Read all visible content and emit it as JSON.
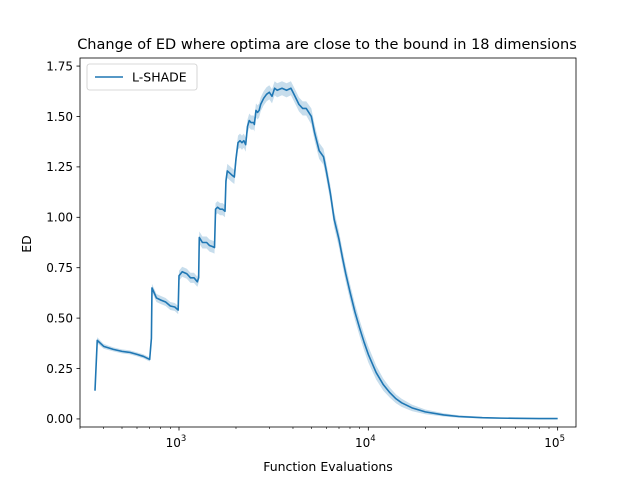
{
  "chart_data": {
    "type": "line",
    "title": "Change of ED where optima are close to the bound in 18 dimensions",
    "xlabel": "Function Evaluations",
    "ylabel": "ED",
    "xscale": "log",
    "xlim": [
      300,
      125000
    ],
    "ylim": [
      -0.04,
      1.79
    ],
    "xticks": [
      {
        "value": 1000,
        "base": "10",
        "exp": "3"
      },
      {
        "value": 10000,
        "base": "10",
        "exp": "4"
      },
      {
        "value": 100000,
        "base": "10",
        "exp": "5"
      }
    ],
    "yticks": [
      {
        "value": 0.0,
        "label": "0.00"
      },
      {
        "value": 0.25,
        "label": "0.25"
      },
      {
        "value": 0.5,
        "label": "0.50"
      },
      {
        "value": 0.75,
        "label": "0.75"
      },
      {
        "value": 1.0,
        "label": "1.00"
      },
      {
        "value": 1.25,
        "label": "1.25"
      },
      {
        "value": 1.5,
        "label": "1.50"
      },
      {
        "value": 1.75,
        "label": "1.75"
      }
    ],
    "legend": {
      "position": "top-left",
      "entries": [
        "L-SHADE"
      ]
    },
    "colors": {
      "line": "#1f77b4",
      "band": "#1f77b4"
    },
    "grid": false,
    "series": [
      {
        "name": "L-SHADE",
        "x": [
          360,
          370,
          400,
          450,
          500,
          550,
          600,
          650,
          700,
          715,
          720,
          760,
          800,
          850,
          900,
          950,
          990,
          1000,
          1040,
          1100,
          1150,
          1200,
          1250,
          1270,
          1280,
          1330,
          1400,
          1450,
          1500,
          1540,
          1560,
          1600,
          1650,
          1700,
          1750,
          1770,
          1800,
          1850,
          1900,
          1960,
          2000,
          2050,
          2100,
          2150,
          2200,
          2250,
          2300,
          2350,
          2400,
          2480,
          2500,
          2550,
          2600,
          2650,
          2700,
          2800,
          2900,
          3000,
          3100,
          3200,
          3300,
          3500,
          3700,
          3900,
          4000,
          4200,
          4300,
          4500,
          4700,
          5000,
          5200,
          5500,
          5800,
          6000,
          6300,
          6600,
          7000,
          7300,
          7600,
          8000,
          8500,
          9000,
          9500,
          10000,
          11000,
          12000,
          13000,
          14000,
          15000,
          17000,
          20000,
          25000,
          30000,
          40000,
          50000,
          60000,
          80000,
          100000
        ],
        "y": [
          0.14,
          0.39,
          0.36,
          0.345,
          0.335,
          0.33,
          0.32,
          0.31,
          0.295,
          0.4,
          0.65,
          0.6,
          0.59,
          0.58,
          0.56,
          0.555,
          0.54,
          0.71,
          0.73,
          0.72,
          0.7,
          0.7,
          0.68,
          0.7,
          0.9,
          0.875,
          0.875,
          0.86,
          0.855,
          0.85,
          1.04,
          1.05,
          1.04,
          1.04,
          1.03,
          1.18,
          1.23,
          1.22,
          1.21,
          1.2,
          1.29,
          1.37,
          1.38,
          1.37,
          1.38,
          1.36,
          1.45,
          1.48,
          1.47,
          1.47,
          1.46,
          1.53,
          1.52,
          1.53,
          1.56,
          1.59,
          1.61,
          1.62,
          1.6,
          1.64,
          1.63,
          1.64,
          1.63,
          1.64,
          1.62,
          1.58,
          1.56,
          1.54,
          1.54,
          1.5,
          1.42,
          1.33,
          1.3,
          1.23,
          1.12,
          0.99,
          0.89,
          0.8,
          0.72,
          0.63,
          0.53,
          0.45,
          0.38,
          0.32,
          0.23,
          0.17,
          0.13,
          0.1,
          0.08,
          0.055,
          0.035,
          0.02,
          0.012,
          0.006,
          0.004,
          0.003,
          0.002,
          0.002
        ],
        "band": [
          0.005,
          0.015,
          0.012,
          0.01,
          0.01,
          0.01,
          0.01,
          0.01,
          0.01,
          0.02,
          0.02,
          0.02,
          0.02,
          0.02,
          0.02,
          0.02,
          0.02,
          0.025,
          0.025,
          0.025,
          0.025,
          0.025,
          0.025,
          0.025,
          0.03,
          0.03,
          0.03,
          0.03,
          0.03,
          0.03,
          0.03,
          0.03,
          0.03,
          0.03,
          0.03,
          0.035,
          0.035,
          0.035,
          0.035,
          0.035,
          0.035,
          0.035,
          0.035,
          0.035,
          0.035,
          0.035,
          0.035,
          0.035,
          0.035,
          0.035,
          0.035,
          0.035,
          0.035,
          0.035,
          0.035,
          0.035,
          0.035,
          0.035,
          0.035,
          0.035,
          0.035,
          0.035,
          0.035,
          0.035,
          0.035,
          0.035,
          0.035,
          0.035,
          0.035,
          0.04,
          0.04,
          0.04,
          0.04,
          0.04,
          0.04,
          0.04,
          0.04,
          0.04,
          0.04,
          0.04,
          0.04,
          0.04,
          0.04,
          0.04,
          0.035,
          0.03,
          0.025,
          0.022,
          0.02,
          0.016,
          0.012,
          0.008,
          0.006,
          0.004,
          0.003,
          0.002,
          0.002,
          0.002
        ]
      }
    ]
  }
}
